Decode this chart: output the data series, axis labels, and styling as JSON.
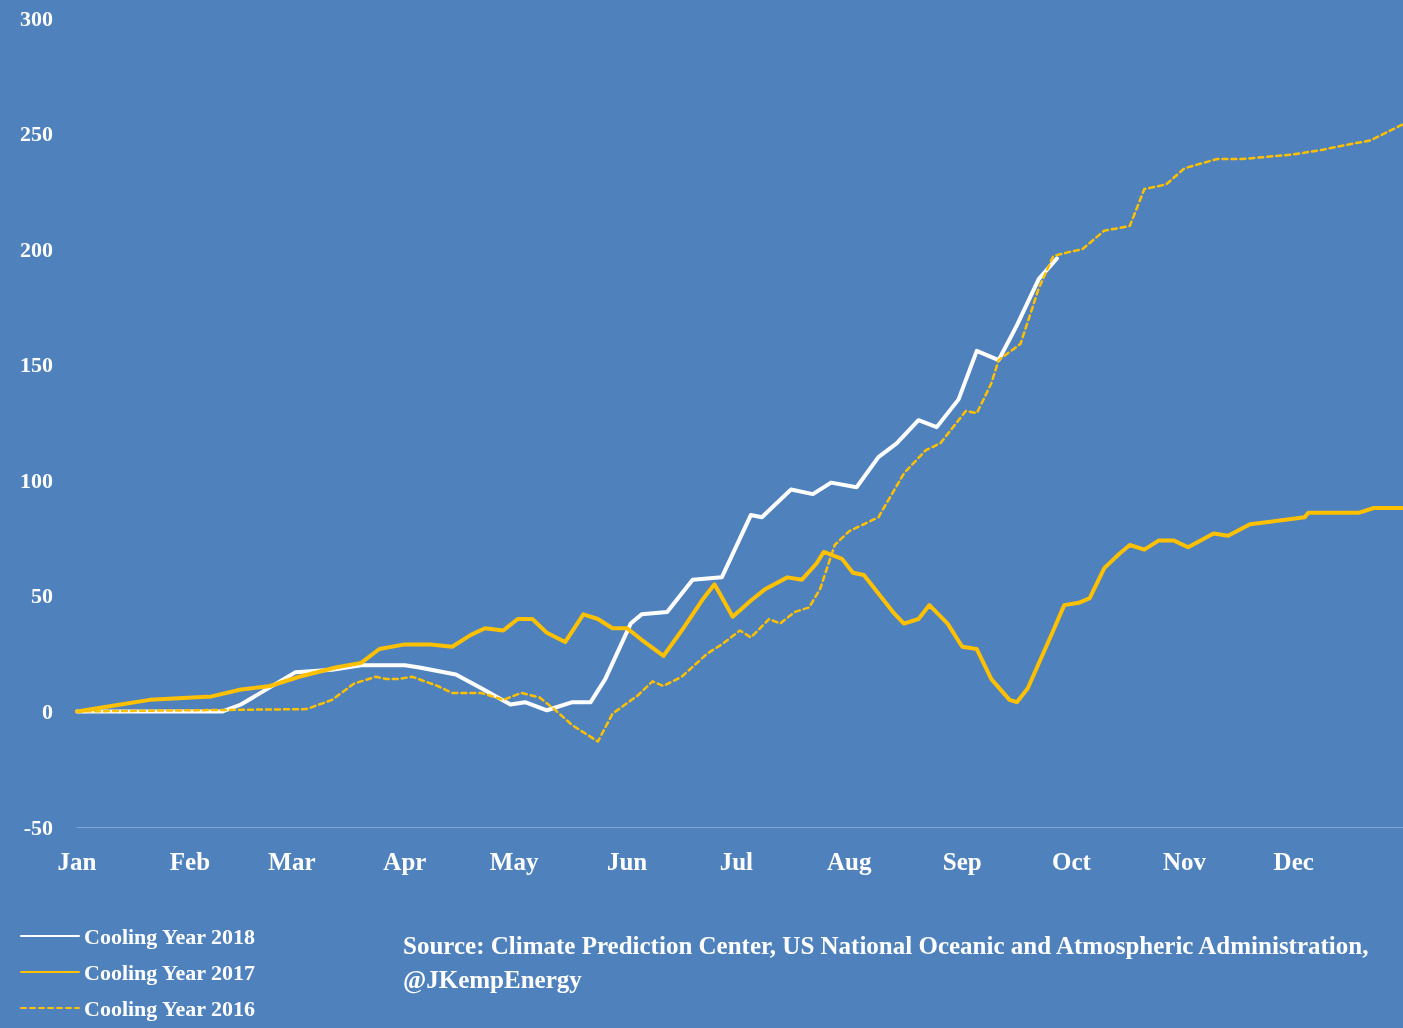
{
  "chart_data": {
    "type": "line",
    "ylim": [
      -50,
      300
    ],
    "yticks": [
      -50,
      0,
      50,
      100,
      150,
      200,
      250,
      300
    ],
    "xlim": [
      "--01-01",
      "--12-31"
    ],
    "xticks": [
      {
        "value": "--01-01",
        "label": "Jan"
      },
      {
        "value": "--02-01",
        "label": "Feb"
      },
      {
        "value": "--03-01",
        "label": "Mar"
      },
      {
        "value": "--04-01",
        "label": "Apr"
      },
      {
        "value": "--05-01",
        "label": "May"
      },
      {
        "value": "--06-01",
        "label": "Jun"
      },
      {
        "value": "--07-01",
        "label": "Jul"
      },
      {
        "value": "--08-01",
        "label": "Aug"
      },
      {
        "value": "--09-01",
        "label": "Sep"
      },
      {
        "value": "--10-01",
        "label": "Oct"
      },
      {
        "value": "--11-01",
        "label": "Nov"
      },
      {
        "value": "--12-01",
        "label": "Dec"
      }
    ],
    "grid": false,
    "legend": "bottom left",
    "marker": "none",
    "annotations": [
      "Source: Climate Prediction Center, US National Oceanic and Atmospheric Administration, @JKempEnergy"
    ],
    "series": [
      {
        "name": "Cooling Year 2018",
        "color": "#ffffff",
        "line_style": "solid",
        "x": [
          "--01-01",
          "--02-10",
          "--02-15",
          "--03-02",
          "--03-12",
          "--03-20",
          "--04-01",
          "--04-05",
          "--04-15",
          "--04-22",
          "--04-30",
          "--05-04",
          "--05-10",
          "--05-17",
          "--05-22",
          "--05-26",
          "--06-02",
          "--06-05",
          "--06-12",
          "--06-19",
          "--06-27",
          "--07-05",
          "--07-08",
          "--07-16",
          "--07-22",
          "--07-27",
          "--08-03",
          "--08-09",
          "--08-14",
          "--08-20",
          "--08-25",
          "--08-31",
          "--09-05",
          "--09-11",
          "--09-16",
          "--09-22",
          "--09-27"
        ],
        "values": [
          0,
          0,
          3,
          17,
          18,
          20,
          20,
          19,
          16,
          10,
          3,
          4,
          0.5,
          4,
          4,
          14,
          38,
          42,
          43,
          57,
          58,
          85,
          84,
          96,
          94,
          99,
          97,
          110,
          116,
          126,
          123,
          135,
          156,
          152,
          167,
          187,
          196
        ]
      },
      {
        "name": "Cooling Year 2017",
        "color": "#ffc000",
        "line_style": "solid",
        "x": [
          "--01-01",
          "--01-13",
          "--01-21",
          "--02-07",
          "--02-15",
          "--02-23",
          "--03-03",
          "--03-13",
          "--03-20",
          "--03-25",
          "--04-01",
          "--04-08",
          "--04-14",
          "--04-19",
          "--04-23",
          "--04-28",
          "--05-02",
          "--05-06",
          "--05-10",
          "--05-15",
          "--05-20",
          "--05-24",
          "--05-28",
          "--06-01",
          "--06-05",
          "--06-11",
          "--06-16",
          "--06-22",
          "--06-25",
          "--06-30",
          "--07-05",
          "--07-09",
          "--07-15",
          "--07-19",
          "--07-23",
          "--07-25",
          "--07-30",
          "--08-02",
          "--08-05",
          "--08-13",
          "--08-16",
          "--08-20",
          "--08-23",
          "--08-28",
          "--09-01",
          "--09-05",
          "--09-09",
          "--09-14",
          "--09-16",
          "--09-19",
          "--09-26",
          "--09-29",
          "--10-03",
          "--10-06",
          "--10-10",
          "--10-14",
          "--10-17",
          "--10-21",
          "--10-25",
          "--10-29",
          "--11-02",
          "--11-09",
          "--11-13",
          "--11-19",
          "--11-24",
          "--12-04",
          "--12-05",
          "--12-19",
          "--12-23",
          "--12-31"
        ],
        "values": [
          0,
          3,
          5,
          6.5,
          9.5,
          11,
          15,
          19,
          21,
          27,
          29,
          29,
          28,
          33,
          36,
          35,
          40,
          40,
          34,
          30,
          42,
          40,
          36,
          36,
          31,
          24,
          35,
          49,
          55,
          41,
          48,
          53,
          58,
          57,
          64,
          69,
          66,
          60,
          59,
          43,
          38,
          40,
          46,
          38,
          28,
          27,
          14,
          5,
          4,
          10,
          35,
          46,
          47,
          49,
          62,
          68,
          72,
          70,
          74,
          74,
          71,
          77,
          76,
          81,
          82,
          84,
          86,
          86,
          88,
          88
        ]
      },
      {
        "name": "Cooling Year 2016",
        "color": "#ffc000",
        "line_style": "dashed",
        "x": [
          "--01-01",
          "--03-05",
          "--03-12",
          "--03-18",
          "--03-24",
          "--03-27",
          "--03-30",
          "--04-03",
          "--04-10",
          "--04-14",
          "--04-22",
          "--04-28",
          "--05-03",
          "--05-08",
          "--05-12",
          "--05-17",
          "--05-24",
          "--05-28",
          "--06-04",
          "--06-08",
          "--06-11",
          "--06-16",
          "--06-23",
          "--06-27",
          "--07-02",
          "--07-05",
          "--07-10",
          "--07-13",
          "--07-17",
          "--07-21",
          "--07-24",
          "--07-28",
          "--08-01",
          "--08-09",
          "--08-16",
          "--08-22",
          "--08-26",
          "--09-02",
          "--09-05",
          "--09-09",
          "--09-11",
          "--09-17",
          "--09-22",
          "--09-26",
          "--10-01",
          "--10-04",
          "--10-10",
          "--10-17",
          "--10-21",
          "--10-27",
          "--11-01",
          "--11-10",
          "--11-17",
          "--12-01",
          "--12-09",
          "--12-15",
          "--12-22",
          "--12-31"
        ],
        "values": [
          0,
          1,
          5,
          12,
          15,
          14,
          14,
          15,
          11,
          8,
          8,
          5,
          8,
          6,
          1,
          -6,
          -13,
          -1,
          7,
          13,
          11,
          15,
          25,
          29,
          35,
          32,
          40,
          38,
          43,
          45,
          53,
          72,
          78,
          84,
          103,
          113,
          116,
          130,
          129,
          142,
          152,
          159,
          183,
          197,
          199,
          200,
          208,
          210,
          226,
          228,
          235,
          239,
          239,
          241,
          243,
          245,
          247,
          254
        ]
      }
    ]
  }
}
